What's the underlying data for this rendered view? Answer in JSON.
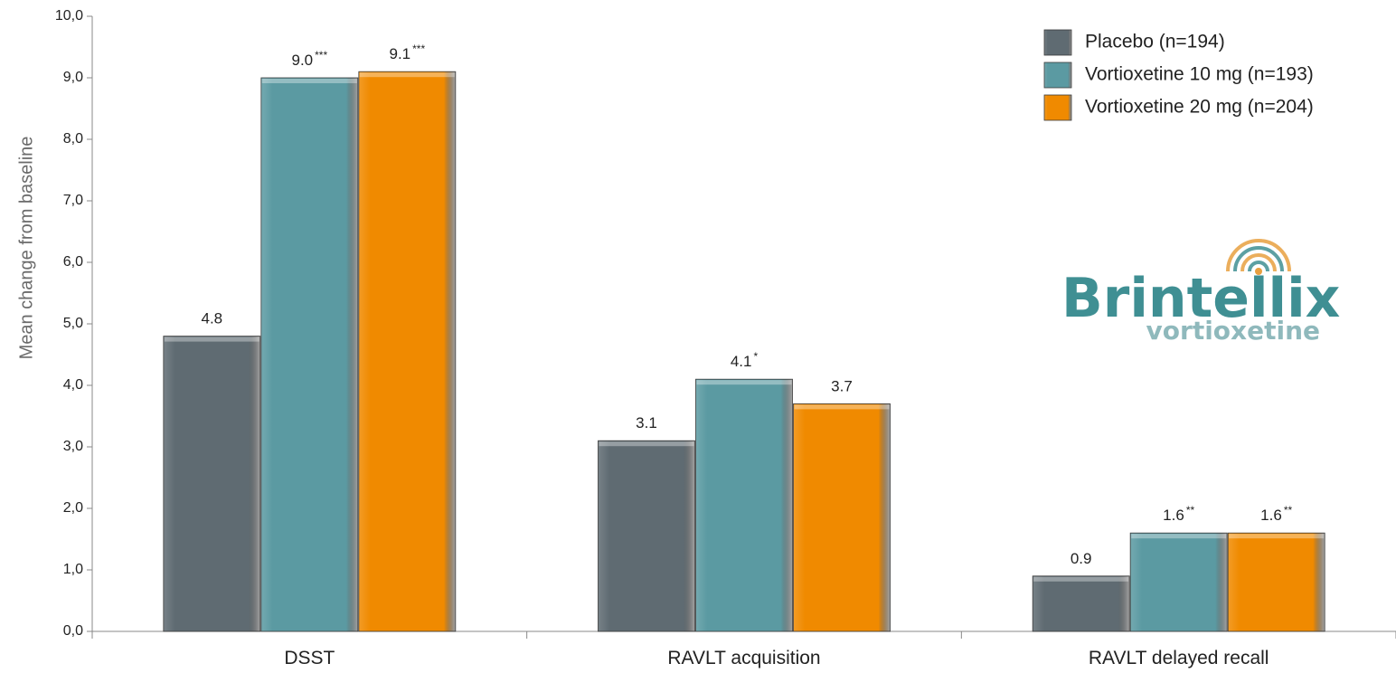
{
  "chart_data": {
    "type": "bar",
    "title": "",
    "xlabel": "",
    "ylabel": "Mean change from baseline",
    "ylim": [
      0,
      10
    ],
    "yticks": [
      "0,0",
      "1,0",
      "2,0",
      "3,0",
      "4,0",
      "5,0",
      "6,0",
      "7,0",
      "8,0",
      "9,0",
      "10,0"
    ],
    "categories": [
      "DSST",
      "RAVLT acquisition",
      "RAVLT delayed recall"
    ],
    "legend_position": "top-right",
    "grid": false,
    "series": [
      {
        "name": "Placebo (n=194)",
        "color": "#5f6b72",
        "values": [
          4.8,
          3.1,
          0.9
        ],
        "labels": [
          "4.8",
          "3.1",
          "0.9"
        ],
        "significance": [
          "",
          "",
          ""
        ]
      },
      {
        "name": "Vortioxetine 10 mg (n=193)",
        "color": "#5b9aa2",
        "values": [
          9.0,
          4.1,
          1.6
        ],
        "labels": [
          "9.0",
          "4.1",
          "1.6"
        ],
        "significance": [
          "***",
          "*",
          "**"
        ]
      },
      {
        "name": "Vortioxetine 20 mg (n=204)",
        "color": "#f08a00",
        "values": [
          9.1,
          3.7,
          1.6
        ],
        "labels": [
          "9.1",
          "3.7",
          "1.6"
        ],
        "significance": [
          "***",
          "",
          "**"
        ]
      }
    ]
  },
  "logo": {
    "brand": "Brintellix",
    "generic": "vortioxetine",
    "colors": {
      "primary": "#3f8f93",
      "secondary": "#8fb9bc",
      "accent": "#e8a040"
    }
  }
}
